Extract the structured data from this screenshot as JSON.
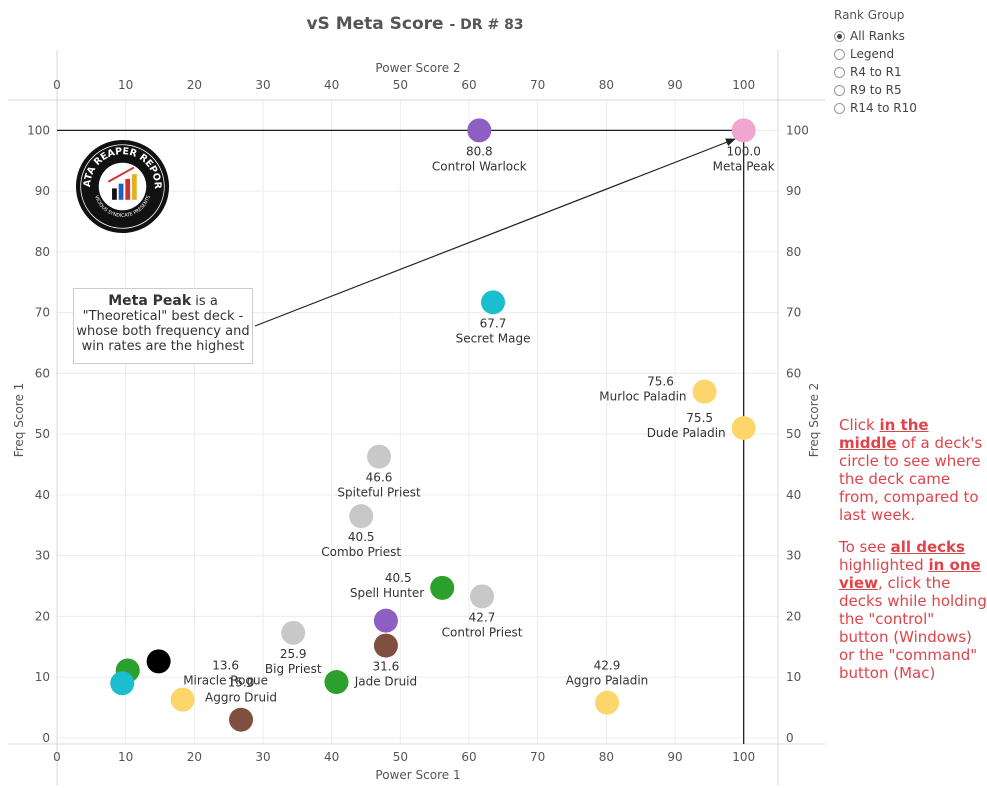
{
  "title": "vS Meta Score",
  "title_suffix": "- DR # 83",
  "filter": {
    "title": "Rank Group",
    "options": [
      {
        "label": "All Ranks",
        "checked": true
      },
      {
        "label": "Legend",
        "checked": false
      },
      {
        "label": "R4 to R1",
        "checked": false
      },
      {
        "label": "R9 to R5",
        "checked": false
      },
      {
        "label": "R14 to R10",
        "checked": false
      }
    ]
  },
  "note": {
    "bold": "Meta Peak",
    "text1": " is a \"Theoretical\" best deck - whose both frequency and win rates are the highest"
  },
  "logo": {
    "top": "DATA REAPER REPORT",
    "bottom": "VICIOUS SYNDICATE PRESENTS"
  },
  "help": {
    "p1_a": "Click ",
    "p1_b": "in the middle",
    "p1_c": " of a deck's circle to see where the deck came from, compared to last week.",
    "p2_a": "To see ",
    "p2_b": "all decks",
    "p2_c": " highlighted ",
    "p2_d": "in one view",
    "p2_e": ", click the decks while holding the \"control\" button (Windows) or the \"command\" button (Mac)"
  },
  "colors": {
    "purple": "#8e5fc3",
    "pink": "#f0a6cf",
    "cyan": "#1bbecf",
    "yellow": "#fcd66b",
    "gray": "#c8c8c8",
    "green": "#2ca02c",
    "brown": "#7f4f3f",
    "black": "#000000",
    "help_red": "#e0444a"
  },
  "chart_data": {
    "type": "scatter",
    "title": "vS Meta Score - DR # 83",
    "xlabel_bottom": "Power Score 1",
    "xlabel_top": "Power Score 2",
    "ylabel_left": "Freq Score 1",
    "ylabel_right": "Freq Score 2",
    "xlim": [
      0,
      105
    ],
    "ylim": [
      -1,
      105
    ],
    "xticks": [
      0,
      10,
      20,
      30,
      40,
      50,
      60,
      70,
      80,
      90,
      100
    ],
    "yticks": [
      0,
      10,
      20,
      30,
      40,
      50,
      60,
      70,
      80,
      90,
      100
    ],
    "grid": true,
    "reference_lines": {
      "y": 100,
      "x": 100
    },
    "points": [
      {
        "name": "Control Warlock",
        "score": "80.8",
        "x": 61.5,
        "y": 100,
        "color": "purple",
        "label_pos": "below"
      },
      {
        "name": "Meta Peak",
        "score": "100.0",
        "x": 100,
        "y": 100,
        "color": "pink",
        "label_pos": "below"
      },
      {
        "name": "Secret Mage",
        "score": "67.7",
        "x": 63.5,
        "y": 71.7,
        "color": "cyan",
        "label_pos": "below"
      },
      {
        "name": "Murloc Paladin",
        "score": "75.6",
        "x": 94.3,
        "y": 57,
        "color": "yellow",
        "label_pos": "left"
      },
      {
        "name": "Dude Paladin",
        "score": "75.5",
        "x": 100,
        "y": 51,
        "color": "yellow",
        "label_pos": "left"
      },
      {
        "name": "Spiteful Priest",
        "score": "46.6",
        "x": 46.9,
        "y": 46.3,
        "color": "gray",
        "label_pos": "below"
      },
      {
        "name": "Combo Priest",
        "score": "40.5",
        "x": 44.3,
        "y": 36.5,
        "color": "gray",
        "label_pos": "below"
      },
      {
        "name": "Spell Hunter",
        "score": "40.5",
        "x": 56.1,
        "y": 24.7,
        "color": "green",
        "label_pos": "left"
      },
      {
        "name": "Control Priest",
        "score": "42.7",
        "x": 61.9,
        "y": 23.3,
        "color": "gray",
        "label_pos": "below"
      },
      {
        "name": "Big Priest",
        "score": "25.9",
        "x": 34.4,
        "y": 17.3,
        "color": "gray",
        "label_pos": "below"
      },
      {
        "name": "Jade Druid",
        "score": "31.6",
        "x": 47.9,
        "y": 15.2,
        "color": "brown",
        "label_pos": "below"
      },
      {
        "name": "",
        "score": "",
        "x": 47.9,
        "y": 19.3,
        "color": "purple",
        "label_pos": "none"
      },
      {
        "name": "",
        "score": "",
        "x": 40.7,
        "y": 9.2,
        "color": "green",
        "label_pos": "none"
      },
      {
        "name": "Miracle Rogue",
        "score": "13.6",
        "x": 14.8,
        "y": 12.6,
        "color": "black",
        "label_pos": "right"
      },
      {
        "name": "",
        "score": "",
        "x": 10.3,
        "y": 11.1,
        "color": "green",
        "label_pos": "none"
      },
      {
        "name": "",
        "score": "",
        "x": 9.5,
        "y": 9.0,
        "color": "cyan",
        "label_pos": "none"
      },
      {
        "name": "",
        "score": "",
        "x": 18.3,
        "y": 6.3,
        "color": "yellow",
        "label_pos": "none"
      },
      {
        "name": "Aggro Druid",
        "score": "15.0",
        "x": 26.8,
        "y": 3.0,
        "color": "brown",
        "label_pos": "above"
      },
      {
        "name": "Aggro Paladin",
        "score": "42.9",
        "x": 80.1,
        "y": 5.8,
        "color": "yellow",
        "label_pos": "above"
      }
    ],
    "annotation_arrow": {
      "from": "Meta Peak note",
      "to": "Meta Peak"
    }
  }
}
